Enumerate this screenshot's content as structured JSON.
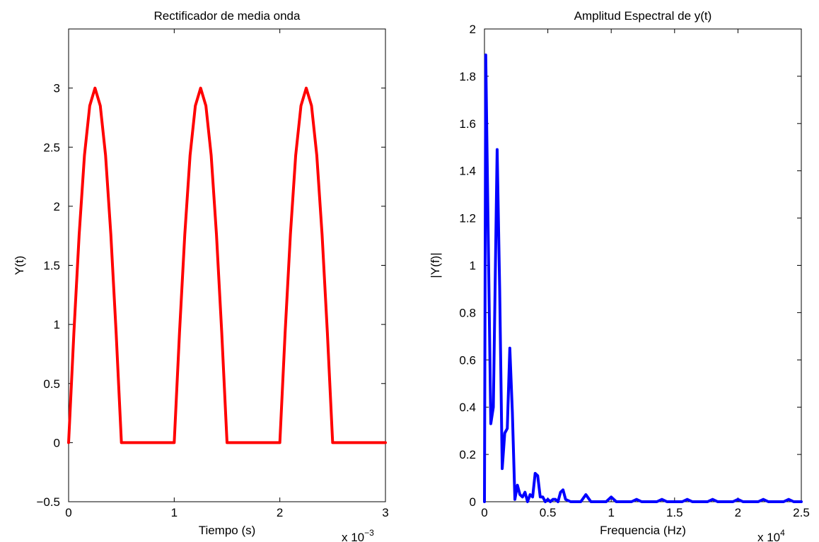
{
  "chart_data": [
    {
      "type": "line",
      "title": "Rectificador de media onda",
      "xlabel": "Tiempo (s)",
      "ylabel": "Y(t)",
      "x_multiplier": "x 10",
      "x_multiplier_exp": "−3",
      "xlim": [
        0,
        0.003
      ],
      "ylim": [
        -0.5,
        3.5
      ],
      "xticks": [
        0,
        0.001,
        0.002,
        0.003
      ],
      "xtick_labels": [
        "0",
        "1",
        "2",
        "3"
      ],
      "yticks": [
        -0.5,
        0,
        0.5,
        1,
        1.5,
        2,
        2.5,
        3
      ],
      "ytick_labels": [
        "−0.5",
        "0",
        "0.5",
        "1",
        "1.5",
        "2",
        "2.5",
        "3"
      ],
      "grid": false,
      "color": "#ff0000",
      "series": [
        {
          "x": [
            0,
            5e-05,
            0.0001,
            0.00015,
            0.0002,
            0.00025,
            0.0003,
            0.00035,
            0.0004,
            0.00045,
            0.0005,
            0.00055,
            0.0006,
            0.0007,
            0.0008,
            0.0009,
            0.00095,
            0.001,
            0.00105,
            0.0011,
            0.00115,
            0.0012,
            0.00125,
            0.0013,
            0.00135,
            0.0014,
            0.00145,
            0.0015,
            0.00155,
            0.0016,
            0.0017,
            0.0018,
            0.0019,
            0.00195,
            0.002,
            0.00205,
            0.0021,
            0.00215,
            0.0022,
            0.00225,
            0.0023,
            0.00235,
            0.0024,
            0.00245,
            0.0025,
            0.00255,
            0.0026,
            0.0027,
            0.0028,
            0.0029,
            0.003
          ],
          "y": [
            0,
            0.93,
            1.76,
            2.43,
            2.85,
            3.0,
            2.85,
            2.43,
            1.76,
            0.93,
            0,
            0,
            0,
            0,
            0,
            0,
            0,
            0,
            0.93,
            1.76,
            2.43,
            2.85,
            3.0,
            2.85,
            2.43,
            1.76,
            0.93,
            0,
            0,
            0,
            0,
            0,
            0,
            0,
            0,
            0.93,
            1.76,
            2.43,
            2.85,
            3.0,
            2.85,
            2.43,
            1.76,
            0.93,
            0,
            0,
            0,
            0,
            0,
            0,
            0
          ]
        }
      ]
    },
    {
      "type": "line",
      "title": "Amplitud Espectral de y(t)",
      "xlabel": "Frequencia (Hz)",
      "ylabel": "|Y(f)|",
      "x_multiplier": "x 10",
      "x_multiplier_exp": "4",
      "xlim": [
        0,
        25000
      ],
      "ylim": [
        0,
        2
      ],
      "xticks": [
        0,
        5000,
        10000,
        15000,
        20000,
        25000
      ],
      "xtick_labels": [
        "0",
        "0.5",
        "1",
        "1.5",
        "2",
        "2.5"
      ],
      "yticks": [
        0,
        0.2,
        0.4,
        0.6,
        0.8,
        1,
        1.2,
        1.4,
        1.6,
        1.8,
        2
      ],
      "ytick_labels": [
        "0",
        "0.2",
        "0.4",
        "0.6",
        "0.8",
        "1",
        "1.2",
        "1.4",
        "1.6",
        "1.8",
        "2"
      ],
      "grid": false,
      "color": "#0000ff",
      "series": [
        {
          "x": [
            0,
            100,
            500,
            700,
            1000,
            1200,
            1400,
            1600,
            1800,
            2000,
            2200,
            2400,
            2600,
            2800,
            3000,
            3200,
            3400,
            3600,
            3800,
            4000,
            4200,
            4400,
            4600,
            4800,
            5000,
            5200,
            5400,
            5600,
            5800,
            6000,
            6200,
            6400,
            6800,
            7200,
            7600,
            8000,
            8400,
            8800,
            9200,
            9600,
            10000,
            10400,
            11000,
            11600,
            12000,
            12400,
            13000,
            13600,
            14000,
            14400,
            15000,
            15600,
            16000,
            16400,
            17000,
            17600,
            18000,
            18400,
            19000,
            19600,
            20000,
            20400,
            21000,
            21600,
            22000,
            22400,
            23000,
            23600,
            24000,
            24400,
            25000
          ],
          "y": [
            0,
            1.89,
            0.33,
            0.4,
            1.49,
            0.9,
            0.14,
            0.29,
            0.31,
            0.65,
            0.38,
            0.01,
            0.07,
            0.03,
            0.02,
            0.04,
            0.0,
            0.03,
            0.02,
            0.12,
            0.11,
            0.02,
            0.02,
            0.0,
            0.01,
            0.0,
            0.01,
            0.01,
            0.0,
            0.04,
            0.05,
            0.01,
            0.0,
            0.0,
            0.0,
            0.03,
            0.0,
            0.0,
            0.0,
            0.0,
            0.02,
            0.0,
            0.0,
            0.0,
            0.01,
            0.0,
            0.0,
            0.0,
            0.01,
            0.0,
            0.0,
            0.0,
            0.01,
            0.0,
            0.0,
            0.0,
            0.01,
            0.0,
            0.0,
            0.0,
            0.01,
            0.0,
            0.0,
            0.0,
            0.01,
            0.0,
            0.0,
            0.0,
            0.01,
            0.0,
            0.0
          ]
        }
      ]
    }
  ]
}
